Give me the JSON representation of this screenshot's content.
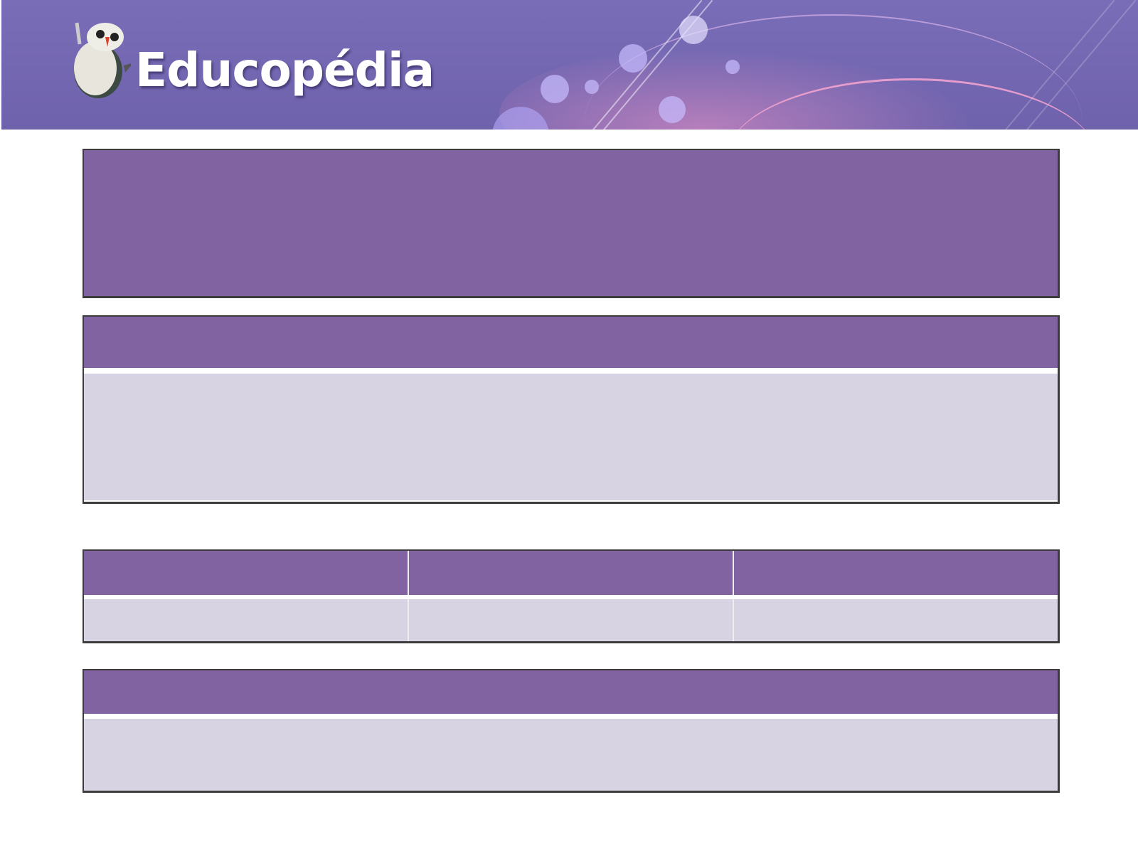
{
  "banner": {
    "logo_text": "Educopédia",
    "brand_color": "#7468b3",
    "mascot_icon": "penguin-mascot-icon"
  },
  "colors": {
    "header_purple": "#8063a0",
    "body_lavender": "#d7d3e2"
  },
  "title_box": {
    "text": ""
  },
  "content_box": {
    "header": "",
    "body": ""
  },
  "table": {
    "headers": [
      "",
      "",
      ""
    ],
    "cells": [
      "",
      "",
      ""
    ]
  },
  "footer_box": {
    "header": "",
    "body": ""
  }
}
